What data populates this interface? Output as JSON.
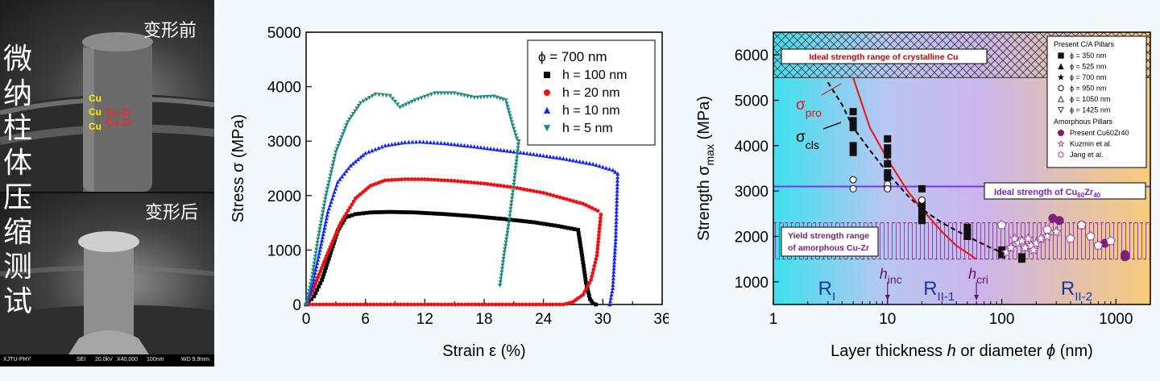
{
  "sem": {
    "caption_top": "变形前",
    "caption_bottom": "变形后",
    "vertical_label_chars": [
      "微",
      "纳",
      "柱",
      "体",
      "压",
      "缩",
      "测",
      "试"
    ],
    "layer_labels": [
      {
        "text": "Cu",
        "color": "#ffee00"
      },
      {
        "text": "Cu",
        "color": "#ffee00"
      },
      {
        "text": "Cu-Zr",
        "color": "#ff2222"
      },
      {
        "text": "Cu",
        "color": "#ffee00"
      },
      {
        "text": "Cu-Zr",
        "color": "#ff2222"
      }
    ],
    "scale_bar": {
      "org": "XJTU-PHY",
      "mode": "SEI",
      "kv": "20.0kV",
      "mag": "X40,000",
      "scale": "100nm",
      "wd": "WD 9.9mm"
    }
  },
  "chart_data": [
    {
      "type": "line",
      "xlabel": "Strain ε (%)",
      "ylabel": "Stress σ (MPa)",
      "xlim": [
        0,
        36
      ],
      "ylim": [
        0,
        5000
      ],
      "xticks": [
        0,
        3,
        6,
        9,
        12,
        15,
        18,
        21,
        24,
        27,
        30,
        33,
        36
      ],
      "xtick_labels": [
        "0",
        "",
        "6",
        "",
        "12",
        "",
        "18",
        "",
        "24",
        "",
        "30",
        "",
        "36"
      ],
      "yticks": [
        0,
        1000,
        2000,
        3000,
        4000,
        5000
      ],
      "ytick_labels": [
        "0",
        "1000",
        "2000",
        "3000",
        "4000",
        "5000"
      ],
      "legend_title": "ϕ = 700 nm",
      "legend_position": "top-right",
      "series": [
        {
          "name": "h = 100 nm",
          "color": "#000000",
          "marker": "square",
          "x": [
            0,
            0.8,
            1.6,
            2.4,
            3.2,
            4.0,
            5.0,
            6.5,
            8.5,
            11,
            14,
            17,
            20,
            23,
            25.5,
            27.5,
            27.9,
            28.3,
            28.7,
            29.0,
            29.3
          ],
          "y": [
            0,
            150,
            450,
            900,
            1350,
            1600,
            1660,
            1690,
            1700,
            1690,
            1660,
            1620,
            1570,
            1510,
            1440,
            1370,
            900,
            400,
            100,
            20,
            0
          ]
        },
        {
          "name": "h = 20 nm",
          "color": "#ee1111",
          "marker": "circle",
          "x": [
            0,
            26,
            27,
            28,
            28.8,
            29.4,
            29.8,
            29.5,
            28,
            26,
            24,
            21,
            18,
            15,
            12,
            10,
            8,
            6.5,
            5,
            3.5,
            2.2,
            1.2,
            0.5,
            0
          ],
          "y": [
            0,
            0,
            50,
            180,
            450,
            900,
            1650,
            1720,
            1850,
            1950,
            2050,
            2150,
            2220,
            2270,
            2300,
            2300,
            2280,
            2180,
            1950,
            1500,
            950,
            500,
            180,
            0
          ]
        },
        {
          "name": "h = 10 nm",
          "color": "#1122ff",
          "marker": "triangle-up",
          "x": [
            0,
            0.7,
            1.4,
            2.2,
            3.2,
            4.5,
            6,
            8,
            10,
            11.5,
            14,
            17,
            20,
            23,
            26,
            29,
            31,
            31.5,
            31.3,
            31,
            30.7
          ],
          "y": [
            0,
            400,
            1000,
            1700,
            2250,
            2550,
            2780,
            2920,
            2980,
            2990,
            2960,
            2900,
            2830,
            2760,
            2680,
            2580,
            2470,
            2400,
            1200,
            300,
            0
          ]
        },
        {
          "name": "h = 5 nm",
          "color": "#1a8a80",
          "marker": "triangle-down",
          "x": [
            0,
            0.6,
            1.2,
            2,
            3,
            4.2,
            5.5,
            7,
            8.5,
            9.5,
            11,
            13,
            15,
            17,
            19,
            20.2,
            20.8,
            21.3,
            21.5,
            21,
            20.5,
            20,
            19.6
          ],
          "y": [
            0,
            500,
            1200,
            2000,
            2800,
            3350,
            3700,
            3860,
            3830,
            3620,
            3750,
            3880,
            3880,
            3800,
            3820,
            3750,
            3350,
            3050,
            3000,
            2200,
            1500,
            900,
            350
          ]
        }
      ]
    },
    {
      "type": "scatter",
      "xlabel": "Layer thickness h or diameter ϕ (nm)",
      "ylabel": "Strength σmax (MPa)",
      "xscale": "log",
      "xlim": [
        1,
        2000
      ],
      "ylim": [
        500,
        6500
      ],
      "xticks": [
        1,
        10,
        100,
        1000
      ],
      "xtick_labels": [
        "1",
        "10",
        "100",
        "1000"
      ],
      "yticks": [
        1000,
        2000,
        3000,
        4000,
        5000,
        6000
      ],
      "ytick_labels": [
        "1000",
        "2000",
        "3000",
        "4000",
        "5000",
        "6000"
      ],
      "band_crystalline": [
        5500,
        6500
      ],
      "band_amorphous": [
        1500,
        2300
      ],
      "ideal_cuzr_y": 3100,
      "label_crystalline": "Ideal strength range of crystalline Cu",
      "label_ideal_cuzr": "Ideal strength of Cu",
      "label_ideal_cuzr_sub1": "60",
      "label_ideal_cuzr_mid": "Zr",
      "label_ideal_cuzr_sub2": "40",
      "label_yield": [
        "Yield strength range",
        "of amorphous Cu-Zr"
      ],
      "sigma_pro": {
        "sym": "σ",
        "sub": "pro",
        "x": [
          5,
          7,
          10,
          15,
          20,
          30,
          40,
          60
        ],
        "y": [
          5500,
          4400,
          3700,
          3000,
          2600,
          2100,
          1800,
          1500
        ]
      },
      "sigma_cls": {
        "sym": "σ",
        "sub": "cls",
        "x": [
          3,
          4,
          5,
          7,
          10,
          15,
          20,
          30,
          50,
          80,
          100
        ],
        "y": [
          5400,
          4900,
          4400,
          3900,
          3400,
          2900,
          2600,
          2300,
          2000,
          1750,
          1650
        ]
      },
      "markers_h": [
        {
          "label": "h",
          "sub": "inc",
          "x": 10
        },
        {
          "label": "h",
          "sub": "cri",
          "x": 60
        }
      ],
      "regions": [
        {
          "label": "R",
          "sub": "I",
          "x": 3
        },
        {
          "label": "R",
          "sub": "II-1",
          "x": 25
        },
        {
          "label": "R",
          "sub": "II-2",
          "x": 400
        }
      ],
      "legend": {
        "title1": "Present C/A Pillars",
        "items1": [
          "ϕ = 350 nm",
          "ϕ = 525 nm",
          "ϕ = 700 nm",
          "ϕ = 950 nm",
          "ϕ = 1050 nm",
          "ϕ = 1425 nm"
        ],
        "title2": "Amorphous Pillars",
        "items2": [
          "Present Cu60Zr40",
          "Kuzmin et al.",
          "Jang et al."
        ]
      },
      "series": [
        {
          "name": "Present C/A Pillars",
          "x": [
            5,
            5,
            5,
            5,
            5,
            10,
            10,
            10,
            10,
            10,
            10,
            10,
            20,
            20,
            20,
            20,
            20,
            20,
            50,
            50,
            50,
            100,
            100,
            150,
            150
          ],
          "y": [
            4750,
            4550,
            4400,
            4000,
            3850,
            4150,
            3950,
            3800,
            3600,
            3400,
            3300,
            3100,
            3050,
            2750,
            2600,
            2450,
            2400,
            2350,
            2200,
            2100,
            2000,
            1700,
            1600,
            1550,
            1500
          ]
        },
        {
          "name": "Present C/A Pillars (open)",
          "x": [
            5,
            5,
            10,
            10,
            20
          ],
          "y": [
            3250,
            3050,
            3150,
            3050,
            2800
          ]
        },
        {
          "name": "Present Cu60Zr40",
          "x": [
            280,
            320,
            500,
            800,
            1200,
            1200
          ],
          "y": [
            2400,
            2350,
            2250,
            1850,
            1600,
            1550
          ]
        },
        {
          "name": "Kuzmin et al.",
          "x": [
            110,
            120,
            130,
            140,
            150,
            160,
            170,
            180,
            190,
            200,
            220,
            250,
            300
          ],
          "y": [
            1650,
            1750,
            1950,
            1850,
            1900,
            1750,
            1950,
            1800,
            1700,
            1850,
            1950,
            2000,
            2100
          ]
        },
        {
          "name": "Jang et al.",
          "x": [
            100,
            250,
            400,
            500,
            600,
            700,
            900
          ],
          "y": [
            2250,
            2150,
            1950,
            2250,
            2000,
            1800,
            1900
          ]
        }
      ]
    }
  ]
}
